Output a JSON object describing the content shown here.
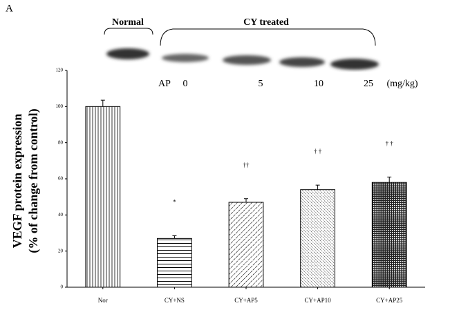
{
  "panel_label": "A",
  "blot": {
    "groups": [
      "Normal",
      "CY treated"
    ],
    "dose_prefix": "AP",
    "doses": [
      "0",
      "5",
      "10",
      "25"
    ],
    "unit": "(mg/kg)"
  },
  "chart_data": {
    "type": "bar",
    "y_label": [
      "VEGF protein expression",
      "(% of change from control)"
    ],
    "categories": [
      "Nor",
      "CY+NS",
      "CY+AP5",
      "CY+AP10",
      "CY+AP25"
    ],
    "values": [
      100,
      27,
      47,
      54,
      58
    ],
    "errors": [
      3.5,
      1.5,
      2,
      2.5,
      3
    ],
    "markers": [
      null,
      "*",
      "††",
      "† †",
      "† †"
    ],
    "color": "#000000",
    "ylim": [
      0,
      120
    ],
    "yticks": [
      0,
      20,
      40,
      60,
      80,
      100,
      120
    ]
  }
}
